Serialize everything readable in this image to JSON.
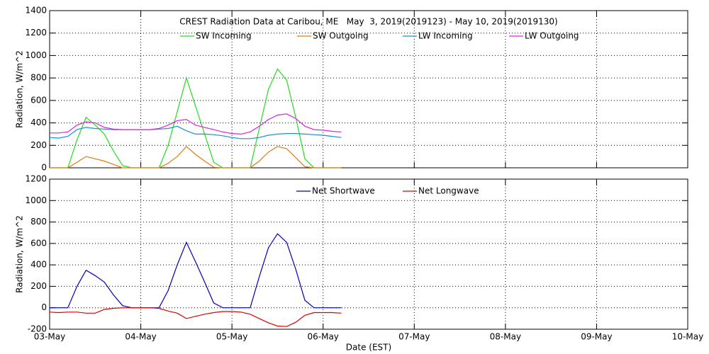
{
  "chart_data": [
    {
      "type": "line",
      "title": "CREST Radiation Data at Caribou, ME   May  3, 2019(2019123) - May 10, 2019(2019130)",
      "ylabel": "Radiation, W/m^2",
      "xlim": [
        0,
        7
      ],
      "xticks": [
        0,
        1,
        2,
        3,
        4,
        5,
        6,
        7
      ],
      "ylim": [
        0,
        1400
      ],
      "yticks": [
        0,
        200,
        400,
        600,
        800,
        1000,
        1200,
        1400
      ],
      "grid": true,
      "x": [
        0,
        0.1,
        0.2,
        0.3,
        0.4,
        0.5,
        0.6,
        0.7,
        0.8,
        0.9,
        1,
        1.1,
        1.2,
        1.3,
        1.4,
        1.5,
        1.6,
        1.7,
        1.8,
        1.9,
        2,
        2.1,
        2.2,
        2.3,
        2.4,
        2.5,
        2.6,
        2.7,
        2.8,
        2.9,
        3,
        3.1,
        3.2
      ],
      "series": [
        {
          "name": "SW Incoming",
          "color": "#22dd22",
          "values": [
            0,
            0,
            0,
            250,
            450,
            380,
            300,
            150,
            20,
            0,
            0,
            0,
            0,
            200,
            500,
            800,
            550,
            300,
            50,
            0,
            0,
            0,
            0,
            350,
            700,
            880,
            780,
            450,
            80,
            0,
            0,
            0,
            0
          ]
        },
        {
          "name": "SW Outgoing",
          "color": "#e07a10",
          "values": [
            0,
            0,
            0,
            50,
            100,
            80,
            60,
            30,
            0,
            0,
            0,
            0,
            0,
            40,
            100,
            190,
            120,
            60,
            5,
            0,
            0,
            0,
            0,
            60,
            140,
            190,
            170,
            90,
            10,
            0,
            0,
            0,
            0
          ]
        },
        {
          "name": "LW Incoming",
          "color": "#1a90d0",
          "values": [
            270,
            265,
            280,
            340,
            360,
            350,
            345,
            340,
            340,
            340,
            340,
            340,
            345,
            350,
            370,
            330,
            300,
            300,
            295,
            285,
            270,
            260,
            260,
            270,
            290,
            300,
            305,
            305,
            300,
            295,
            290,
            280,
            270
          ]
        },
        {
          "name": "LW Outgoing",
          "color": "#e020e0",
          "values": [
            310,
            310,
            320,
            380,
            410,
            400,
            360,
            345,
            340,
            340,
            340,
            340,
            350,
            380,
            420,
            430,
            380,
            360,
            340,
            320,
            305,
            300,
            320,
            370,
            430,
            470,
            480,
            440,
            370,
            340,
            335,
            325,
            320
          ]
        }
      ]
    },
    {
      "type": "line",
      "ylabel": "Radiation, W/m^2",
      "xlabel": "Date (EST)",
      "xlim": [
        0,
        7
      ],
      "xticks": [
        {
          "value": 0,
          "label": "03-May"
        },
        {
          "value": 1,
          "label": "04-May"
        },
        {
          "value": 2,
          "label": "05-May"
        },
        {
          "value": 3,
          "label": "06-May"
        },
        {
          "value": 4,
          "label": "07-May"
        },
        {
          "value": 5,
          "label": "08-May"
        },
        {
          "value": 6,
          "label": "09-May"
        },
        {
          "value": 7,
          "label": "10-May"
        }
      ],
      "ylim": [
        -200,
        1200
      ],
      "yticks": [
        -200,
        0,
        200,
        400,
        600,
        800,
        1000,
        1200
      ],
      "grid": true,
      "x": [
        0,
        0.1,
        0.2,
        0.3,
        0.4,
        0.5,
        0.6,
        0.7,
        0.8,
        0.9,
        1,
        1.1,
        1.2,
        1.3,
        1.4,
        1.5,
        1.6,
        1.7,
        1.8,
        1.9,
        2,
        2.1,
        2.2,
        2.3,
        2.4,
        2.5,
        2.6,
        2.7,
        2.8,
        2.9,
        3,
        3.1,
        3.2
      ],
      "series": [
        {
          "name": "Net Shortwave",
          "color": "#0000c0",
          "values": [
            0,
            0,
            0,
            200,
            350,
            300,
            240,
            120,
            20,
            0,
            0,
            0,
            0,
            160,
            400,
            610,
            430,
            240,
            45,
            0,
            0,
            0,
            0,
            290,
            560,
            690,
            610,
            360,
            70,
            0,
            0,
            0,
            0
          ]
        },
        {
          "name": "Net Longwave",
          "color": "#e00000",
          "values": [
            -40,
            -45,
            -40,
            -40,
            -50,
            -50,
            -15,
            -5,
            0,
            0,
            0,
            0,
            -5,
            -30,
            -50,
            -100,
            -80,
            -60,
            -45,
            -35,
            -35,
            -40,
            -60,
            -100,
            -140,
            -170,
            -175,
            -135,
            -70,
            -45,
            -45,
            -45,
            -50
          ]
        }
      ]
    }
  ]
}
